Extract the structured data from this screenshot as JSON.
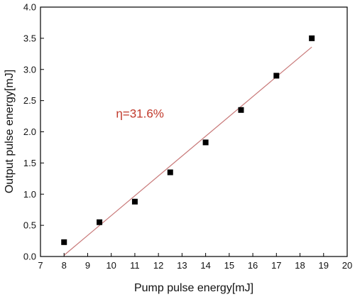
{
  "chart_data": {
    "type": "scatter",
    "xlabel": "Pump pulse energy[mJ]",
    "ylabel": "Output pulse energy[mJ]",
    "xlim": [
      7,
      20
    ],
    "ylim": [
      0,
      4
    ],
    "x_ticks": [
      7,
      8,
      9,
      10,
      11,
      12,
      13,
      14,
      15,
      16,
      17,
      18,
      19,
      20
    ],
    "y_ticks": [
      0.0,
      0.5,
      1.0,
      1.5,
      2.0,
      2.5,
      3.0,
      3.5,
      4.0
    ],
    "x_tick_labels": [
      "7",
      "8",
      "9",
      "10",
      "11",
      "12",
      "13",
      "14",
      "15",
      "16",
      "17",
      "18",
      "19",
      "20"
    ],
    "y_tick_labels": [
      "0.0",
      "0.5",
      "1.0",
      "1.5",
      "2.0",
      "2.5",
      "3.0",
      "3.5",
      "4.0"
    ],
    "grid": false,
    "legend": "none",
    "series": [
      {
        "marker": "square",
        "color": "#000000",
        "points": [
          {
            "x": 8.0,
            "y": 0.23
          },
          {
            "x": 9.5,
            "y": 0.55
          },
          {
            "x": 11.0,
            "y": 0.88
          },
          {
            "x": 12.5,
            "y": 1.35
          },
          {
            "x": 14.0,
            "y": 1.83
          },
          {
            "x": 15.5,
            "y": 2.35
          },
          {
            "x": 17.0,
            "y": 2.9
          },
          {
            "x": 18.5,
            "y": 3.5
          }
        ]
      }
    ],
    "fit_line": {
      "color": "#c87878",
      "from": {
        "x": 8.0,
        "y": 0.02
      },
      "to": {
        "x": 18.5,
        "y": 3.36
      }
    },
    "annotation": {
      "text": "η=31.6%",
      "color": "#c0392b",
      "x": 10.2,
      "y": 2.23
    }
  }
}
